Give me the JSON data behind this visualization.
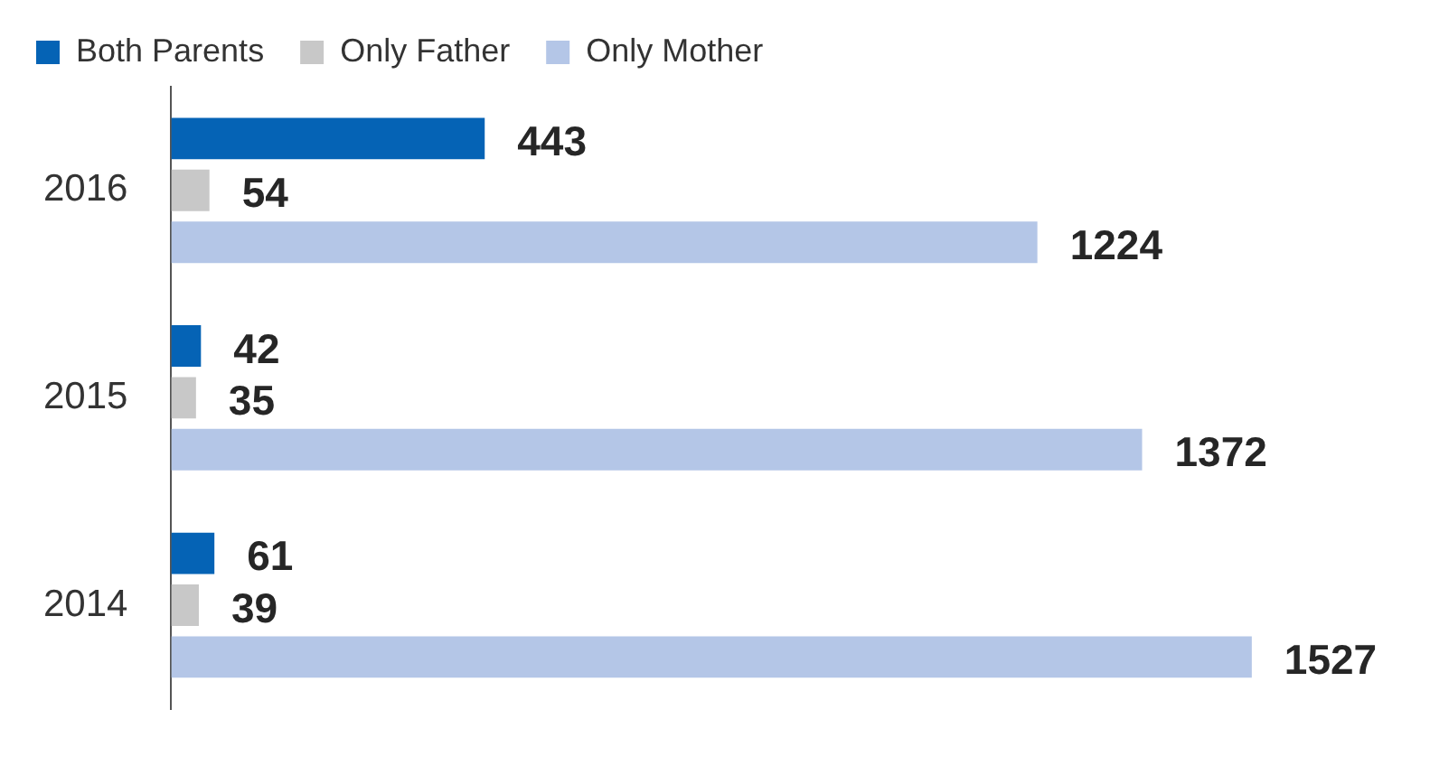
{
  "chart_data": {
    "type": "bar",
    "orientation": "horizontal",
    "categories": [
      "2016",
      "2015",
      "2014"
    ],
    "series": [
      {
        "name": "Both Parents",
        "color": "#0563b5",
        "values": [
          443,
          42,
          61
        ]
      },
      {
        "name": "Only Father",
        "color": "#c8c8c8",
        "values": [
          54,
          35,
          39
        ]
      },
      {
        "name": "Only Mother",
        "color": "#b4c6e7",
        "values": [
          1224,
          1372,
          1527
        ]
      }
    ],
    "data_labels": true,
    "legend": "top left"
  }
}
